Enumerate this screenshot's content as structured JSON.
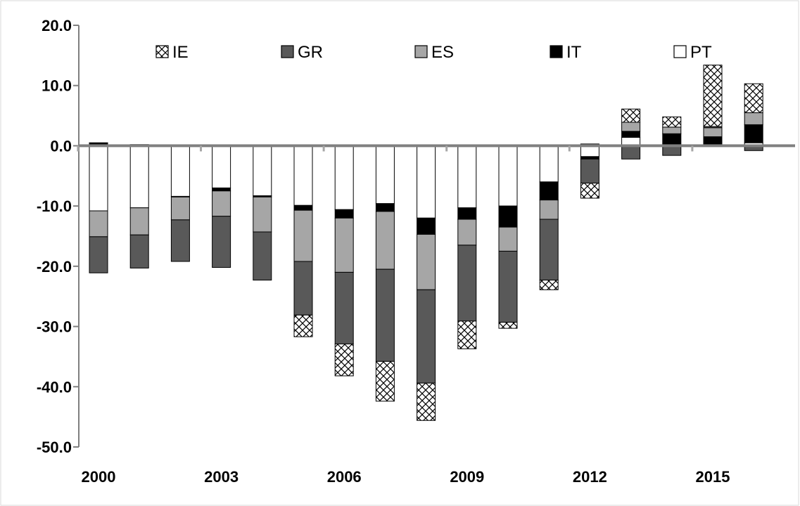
{
  "chart_data": {
    "type": "bar",
    "stacked": true,
    "x": [
      2000,
      2001,
      2002,
      2003,
      2004,
      2005,
      2006,
      2007,
      2008,
      2009,
      2010,
      2011,
      2012,
      2013,
      2014,
      2015,
      2016
    ],
    "x_tick_labels": [
      "2000",
      "2003",
      "2006",
      "2009",
      "2012",
      "2015"
    ],
    "x_tick_years": [
      2000,
      2003,
      2006,
      2009,
      2012,
      2015
    ],
    "ylim": [
      -50,
      20
    ],
    "y_ticks": [
      20,
      10,
      0,
      -10,
      -20,
      -30,
      -40,
      -50
    ],
    "y_tick_labels": [
      "20.0",
      "10.0",
      "0.0",
      "-10.0",
      "-20.0",
      "-30.0",
      "-40.0",
      "-50.0"
    ],
    "grid": false,
    "legend_position": "top",
    "series": [
      {
        "name": "IE",
        "pattern": "crosshatch",
        "color": "#ffffff",
        "values": [
          0,
          0,
          0,
          0,
          0,
          -3.6,
          -5.3,
          -6.6,
          -6.2,
          -4.6,
          -1.0,
          -1.6,
          -2.5,
          2.2,
          1.7,
          10.2,
          4.8
        ]
      },
      {
        "name": "GR",
        "color": "#595959",
        "values": [
          -6.0,
          -5.5,
          -6.9,
          -8.5,
          -8.0,
          -8.9,
          -11.9,
          -15.3,
          -15.5,
          -12.6,
          -11.8,
          -10.1,
          -4.0,
          -2.2,
          -1.6,
          0.2,
          -0.8
        ]
      },
      {
        "name": "ES",
        "color": "#a6a6a6",
        "values": [
          -4.3,
          -4.5,
          -3.8,
          -4.2,
          -5.8,
          -8.5,
          -9.0,
          -9.6,
          -9.2,
          -4.3,
          -4.0,
          -3.2,
          0.3,
          1.5,
          1.1,
          1.5,
          2.0
        ]
      },
      {
        "name": "IT",
        "color": "#000000",
        "values": [
          0.5,
          0.2,
          -0.1,
          -0.5,
          -0.2,
          -0.8,
          -1.4,
          -1.3,
          -2.7,
          -1.9,
          -3.5,
          -3.0,
          -0.4,
          1.0,
          1.9,
          1.4,
          3.0
        ]
      },
      {
        "name": "PT",
        "color": "#ffffff",
        "values": [
          -10.8,
          -10.3,
          -8.4,
          -7.0,
          -8.3,
          -9.9,
          -10.6,
          -9.6,
          -12.0,
          -10.3,
          -10.0,
          -6.0,
          -1.8,
          1.4,
          0.1,
          0.1,
          0.5
        ]
      }
    ]
  }
}
